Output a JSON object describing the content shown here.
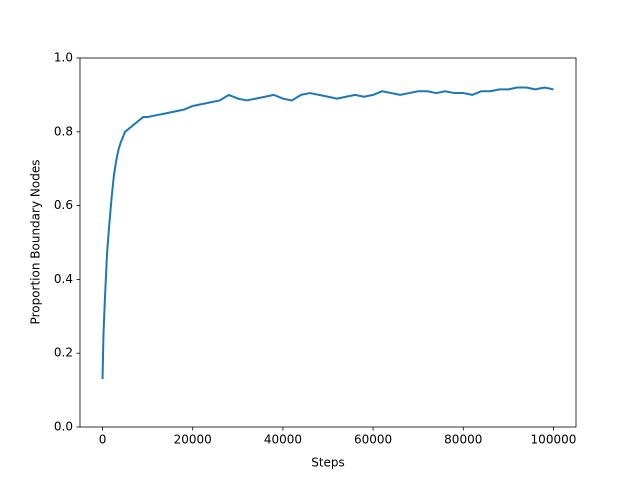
{
  "chart_data": {
    "type": "line",
    "xlabel": "Steps",
    "ylabel": "Proportion Boundary Nodes",
    "x": [
      0,
      200,
      500,
      800,
      1000,
      1500,
      2000,
      2500,
      3000,
      3500,
      4000,
      5000,
      6000,
      7000,
      8000,
      9000,
      10000,
      12000,
      14000,
      16000,
      18000,
      20000,
      22000,
      24000,
      26000,
      28000,
      30000,
      32000,
      34000,
      36000,
      38000,
      40000,
      42000,
      44000,
      46000,
      48000,
      50000,
      52000,
      54000,
      56000,
      58000,
      60000,
      62000,
      64000,
      66000,
      68000,
      70000,
      72000,
      74000,
      76000,
      78000,
      80000,
      82000,
      84000,
      86000,
      88000,
      90000,
      92000,
      94000,
      96000,
      98000,
      100000
    ],
    "series": [
      {
        "color": "#1f77b4",
        "values": [
          0.13,
          0.25,
          0.34,
          0.42,
          0.47,
          0.55,
          0.62,
          0.68,
          0.72,
          0.75,
          0.77,
          0.8,
          0.81,
          0.82,
          0.83,
          0.84,
          0.84,
          0.845,
          0.85,
          0.855,
          0.86,
          0.87,
          0.875,
          0.88,
          0.885,
          0.9,
          0.89,
          0.885,
          0.89,
          0.895,
          0.9,
          0.89,
          0.885,
          0.9,
          0.905,
          0.9,
          0.895,
          0.89,
          0.895,
          0.9,
          0.895,
          0.9,
          0.91,
          0.905,
          0.9,
          0.905,
          0.91,
          0.91,
          0.905,
          0.91,
          0.905,
          0.905,
          0.9,
          0.91,
          0.91,
          0.915,
          0.915,
          0.92,
          0.92,
          0.915,
          0.92,
          0.915
        ]
      }
    ],
    "xlim": [
      -5000,
      105000
    ],
    "ylim": [
      0,
      1
    ],
    "xticks": [
      0,
      20000,
      40000,
      60000,
      80000,
      100000
    ],
    "yticks": [
      {
        "value": 0,
        "label": "0.0"
      },
      0.2,
      0.4,
      0.6,
      0.8,
      {
        "value": 1,
        "label": "1.0"
      }
    ]
  }
}
